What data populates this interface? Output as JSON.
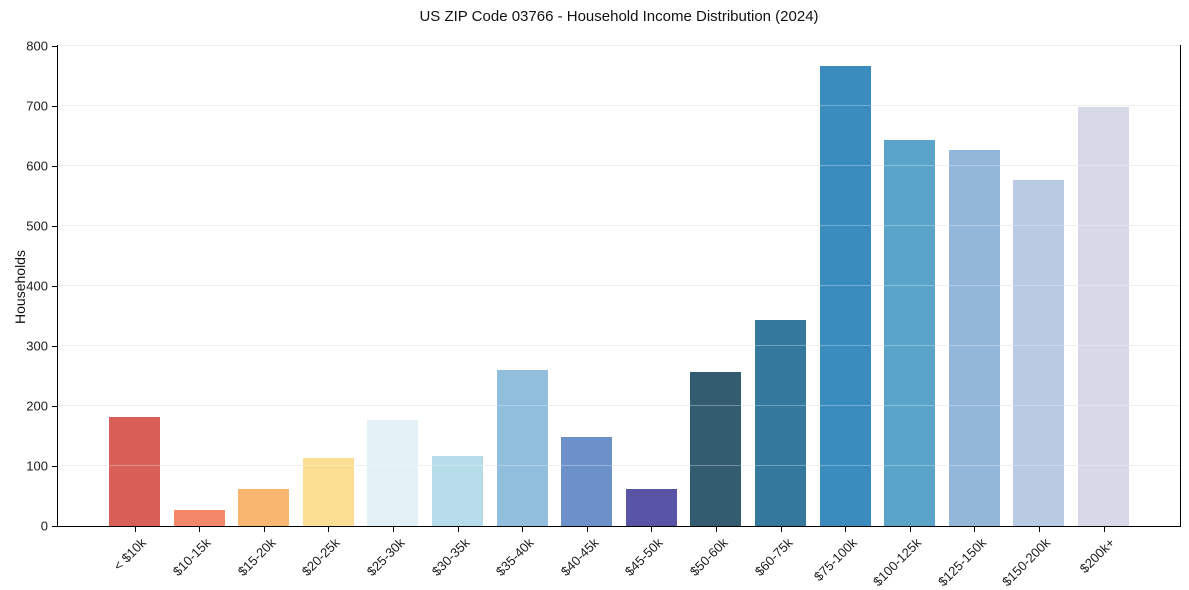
{
  "chart_data": {
    "type": "bar",
    "title": "US ZIP Code 03766 - Household Income Distribution (2024)",
    "xlabel": "",
    "ylabel": "Households",
    "ylim": [
      0,
      800
    ],
    "yticks": [
      0,
      100,
      200,
      300,
      400,
      500,
      600,
      700,
      800
    ],
    "grid": "horizontal",
    "legend": "none",
    "categories": [
      "< $10k",
      "$10-15k",
      "$15-20k",
      "$20-25k",
      "$25-30k",
      "$30-35k",
      "$35-40k",
      "$40-45k",
      "$45-50k",
      "$50-60k",
      "$60-75k",
      "$75-100k",
      "$100-125k",
      "$125-150k",
      "$150-200k",
      "$200k+"
    ],
    "values": [
      181,
      27,
      61,
      114,
      176,
      117,
      260,
      148,
      62,
      256,
      343,
      766,
      643,
      627,
      577,
      699
    ],
    "bar_colors": [
      "#d85f57",
      "#f4876a",
      "#f9b671",
      "#fcde93",
      "#e3f1f6",
      "#b6dcea",
      "#91bedc",
      "#6c91c8",
      "#5a54a6",
      "#345c70",
      "#35789e",
      "#3a8cbe",
      "#5aa3c9",
      "#92b7d8",
      "#b8cbe3",
      "#d7d9e8"
    ],
    "colors": {
      "background": "#ffffff",
      "spine": "#000000",
      "gridline": "#e7e7e7",
      "text": "#111111"
    }
  }
}
